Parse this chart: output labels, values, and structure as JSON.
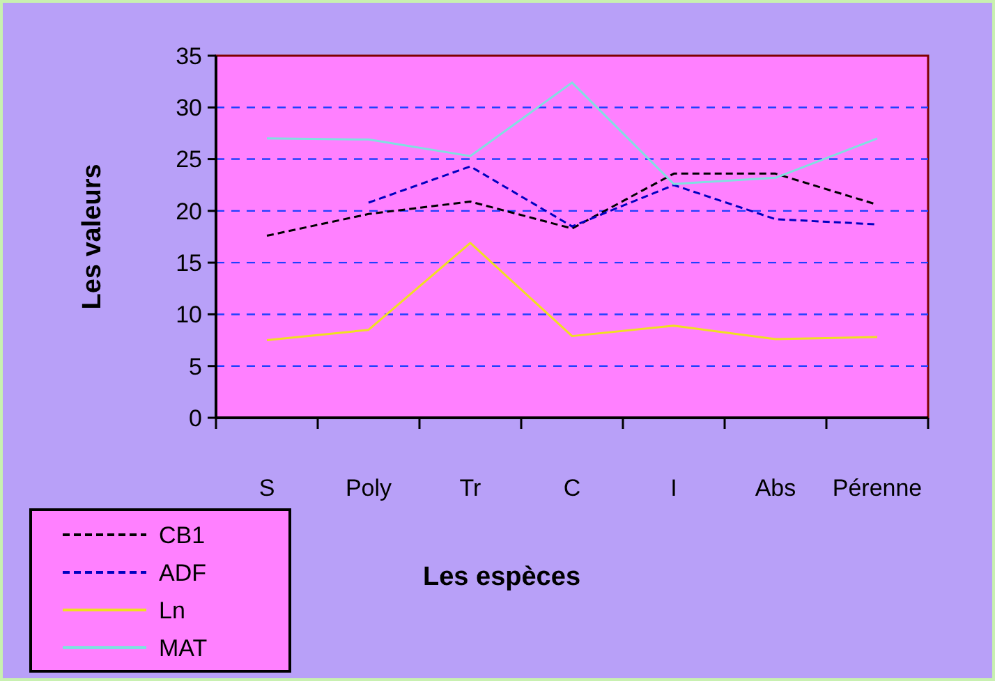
{
  "chart_data": {
    "type": "line",
    "xlabel": "Les espèces",
    "ylabel": "Les valeurs",
    "categories": [
      "S",
      "Poly",
      "Tr",
      "C",
      "I",
      "Abs",
      "Pérenne"
    ],
    "series": [
      {
        "name": "CB1",
        "color": "#000000",
        "line_style": "dashed",
        "values": [
          17.6,
          19.7,
          20.9,
          18.3,
          23.6,
          23.6,
          20.6
        ]
      },
      {
        "name": "ADF",
        "color": "#0000c0",
        "line_style": "dashed",
        "values": [
          null,
          20.8,
          24.3,
          18.5,
          22.5,
          19.2,
          18.7
        ]
      },
      {
        "name": "Ln",
        "color": "#f0e020",
        "line_style": "solid",
        "values": [
          7.5,
          8.5,
          16.9,
          7.9,
          8.9,
          7.6,
          7.8
        ]
      },
      {
        "name": "MAT",
        "color": "#80e0e0",
        "line_style": "solid",
        "values": [
          27,
          26.9,
          25.3,
          32.4,
          22.6,
          23.2,
          27
        ]
      }
    ],
    "ylim": [
      0,
      35
    ],
    "yticks": [
      0,
      5,
      10,
      15,
      20,
      25,
      30,
      35
    ],
    "grid": "y",
    "legend": "bottom left",
    "marker": "none"
  }
}
